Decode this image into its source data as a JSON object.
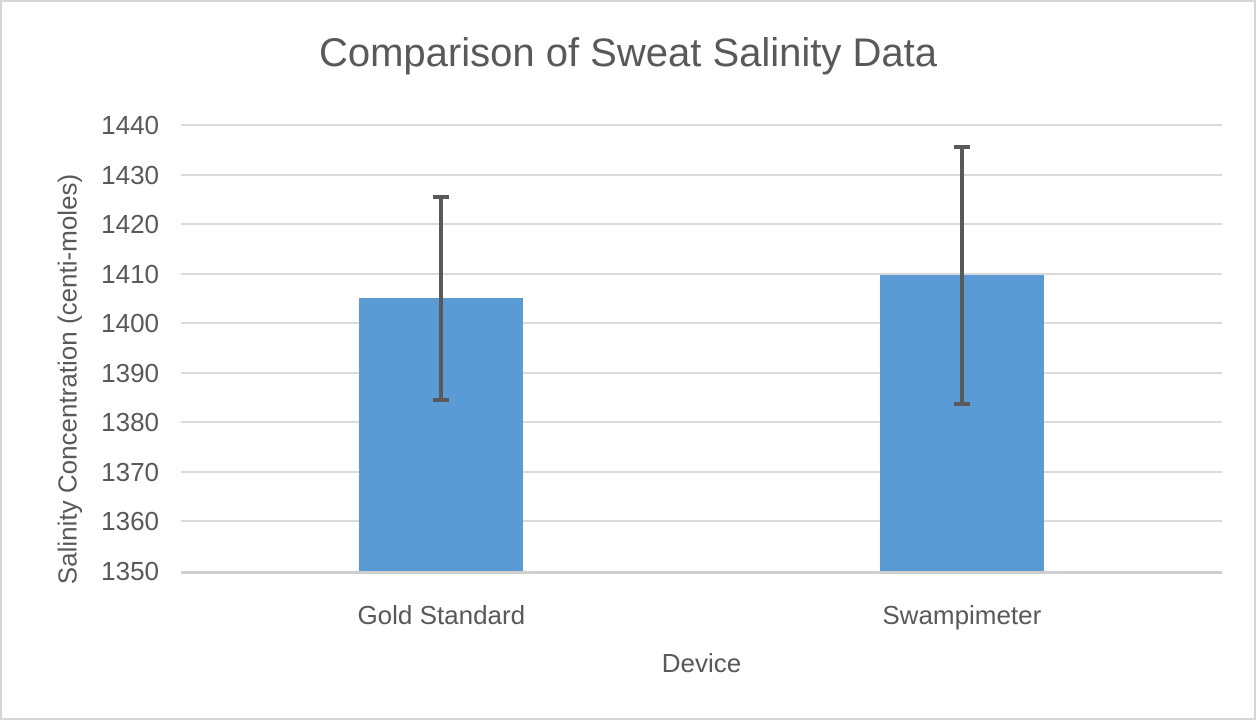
{
  "window": {
    "background": "#ffffff",
    "border_color": "#d6d6d6"
  },
  "chart_data": {
    "type": "bar",
    "title": "Comparison of Sweat Salinity Data",
    "xlabel": "Device",
    "ylabel": "Salinity Concentration (centi-moles)",
    "categories": [
      "Gold Standard",
      "Swampimeter"
    ],
    "series": [
      {
        "name": "Salinity Concentration",
        "values": [
          1405,
          1409.7
        ],
        "error_bars": [
          20.4,
          25.9
        ]
      }
    ],
    "ylim": [
      1350,
      1440
    ],
    "ytick_step": 10,
    "ytick_labels": [
      "1440",
      "1430",
      "1420",
      "1410",
      "1400",
      "1390",
      "1380",
      "1370",
      "1360",
      "1350"
    ],
    "grid": "horizontal",
    "legend": "none",
    "colors": {
      "bar": "#5B9BD5",
      "gridline": "#DADADA",
      "axis_line": "#CFCFCF",
      "text": "#595959",
      "error_bar": "#595959"
    }
  }
}
